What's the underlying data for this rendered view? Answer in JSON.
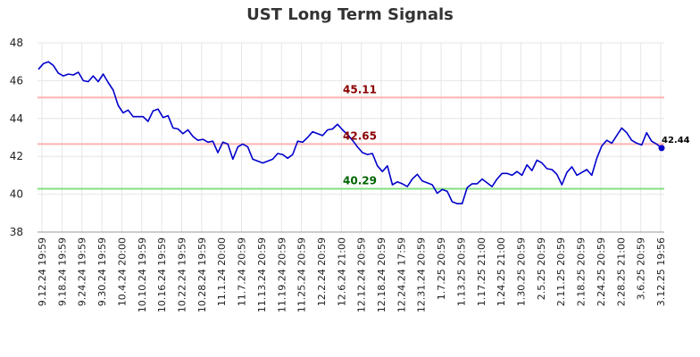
{
  "chart_data": {
    "type": "line",
    "title": "UST Long Term Signals",
    "xlabel": "",
    "ylabel": "",
    "ylim": [
      38,
      48
    ],
    "yticks": [
      38,
      40,
      42,
      44,
      46,
      48
    ],
    "grid": true,
    "x_tick_labels": [
      "9.12.24 19:59",
      "9.18.24 19:59",
      "9.24.24 19:59",
      "9.30.24 19:59",
      "10.4.24 20:00",
      "10.10.24 19:59",
      "10.16.24 19:59",
      "10.22.24 19:59",
      "10.28.24 19:59",
      "11.1.24 20:00",
      "11.7.24 20:59",
      "11.13.24 20:59",
      "11.19.24 20:59",
      "11.25.24 20:59",
      "12.2.24 20:59",
      "12.6.24 21:00",
      "12.12.24 20:59",
      "12.18.24 20:59",
      "12.24.24 17:59",
      "12.31.24 20:59",
      "1.7.25 20:59",
      "1.13.25 20:59",
      "1.17.25 21:00",
      "1.24.25 21:00",
      "1.30.25 20:59",
      "2.5.25 20:59",
      "2.11.25 20:59",
      "2.18.25 20:59",
      "2.24.25 20:59",
      "2.28.25 21:00",
      "3.6.25 20:59",
      "3.12.25 19:56"
    ],
    "series": [
      {
        "color": "#0000cc",
        "values": [
          46.6,
          46.9,
          47.0,
          46.8,
          46.4,
          46.25,
          46.35,
          46.3,
          46.45,
          46.0,
          45.95,
          46.25,
          45.95,
          46.35,
          45.9,
          45.5,
          44.7,
          44.3,
          44.45,
          44.1,
          44.1,
          44.1,
          43.85,
          44.4,
          44.5,
          44.05,
          44.15,
          43.5,
          43.45,
          43.2,
          43.4,
          43.05,
          42.85,
          42.9,
          42.75,
          42.8,
          42.2,
          42.75,
          42.65,
          41.85,
          42.5,
          42.65,
          42.5,
          41.85,
          41.75,
          41.65,
          41.75,
          41.85,
          42.15,
          42.1,
          41.9,
          42.1,
          42.8,
          42.75,
          43.0,
          43.3,
          43.2,
          43.1,
          43.4,
          43.45,
          43.7,
          43.4,
          43.15,
          42.85,
          42.5,
          42.2,
          42.1,
          42.15,
          41.5,
          41.2,
          41.5,
          40.5,
          40.65,
          40.55,
          40.4,
          40.8,
          41.05,
          40.7,
          40.6,
          40.5,
          40.05,
          40.25,
          40.15,
          39.6,
          39.5,
          39.5,
          40.35,
          40.55,
          40.55,
          40.8,
          40.6,
          40.4,
          40.8,
          41.1,
          41.1,
          41.0,
          41.2,
          41.0,
          41.55,
          41.25,
          41.8,
          41.65,
          41.35,
          41.3,
          41.05,
          40.5,
          41.15,
          41.45,
          41.0,
          41.15,
          41.3,
          41.0,
          41.9,
          42.55,
          42.85,
          42.7,
          43.1,
          43.5,
          43.25,
          42.85,
          42.7,
          42.6,
          43.25,
          42.8,
          42.65,
          42.44
        ]
      }
    ],
    "levels": [
      {
        "value": 45.11,
        "label": "45.11",
        "line_color": "#ffb3b3",
        "label_color": "#8b0000"
      },
      {
        "value": 42.65,
        "label": "42.65",
        "line_color": "#ffb3b3",
        "label_color": "#8b0000"
      },
      {
        "value": 40.29,
        "label": "40.29",
        "line_color": "#80e080",
        "label_color": "#006400"
      }
    ],
    "last_value_label": "42.44"
  }
}
